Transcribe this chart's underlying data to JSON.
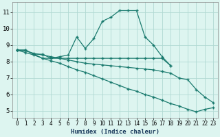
{
  "xlabel": "Humidex (Indice chaleur)",
  "line_color": "#1a7a6e",
  "bg_color": "#ddf5f0",
  "grid_color": "#b0d9d3",
  "xlim": [
    -0.5,
    23.5
  ],
  "ylim": [
    4.6,
    11.6
  ],
  "xticks": [
    0,
    1,
    2,
    3,
    4,
    5,
    6,
    7,
    8,
    9,
    10,
    11,
    12,
    13,
    14,
    15,
    16,
    17,
    18,
    19,
    20,
    21,
    22,
    23
  ],
  "yticks": [
    5,
    6,
    7,
    8,
    9,
    10,
    11
  ],
  "line1_x": [
    0,
    1,
    2,
    3,
    4,
    5,
    6,
    7,
    8,
    9,
    10,
    11,
    12,
    13,
    14,
    15,
    16,
    17,
    18
  ],
  "line1_y": [
    8.7,
    8.7,
    8.45,
    8.45,
    8.2,
    8.3,
    8.4,
    9.5,
    8.8,
    9.4,
    10.45,
    10.7,
    11.1,
    11.1,
    11.1,
    9.5,
    9.0,
    8.3,
    7.75
  ],
  "line2_x": [
    0,
    1,
    2,
    3,
    4,
    5,
    6,
    7,
    8,
    9,
    10,
    11,
    12,
    13,
    14,
    15,
    16,
    17,
    18
  ],
  "line2_y": [
    8.7,
    8.7,
    8.45,
    8.2,
    8.2,
    8.2,
    8.2,
    8.2,
    8.2,
    8.2,
    8.2,
    8.2,
    8.2,
    8.2,
    8.2,
    8.2,
    8.2,
    8.2,
    7.75
  ],
  "line3_x": [
    0,
    1,
    2,
    3,
    4,
    5,
    6,
    7,
    8,
    9,
    10,
    11,
    12,
    13,
    14,
    15,
    16,
    17,
    18,
    19,
    20,
    21,
    22,
    23
  ],
  "line3_y": [
    8.7,
    8.65,
    8.5,
    8.4,
    8.3,
    8.2,
    8.1,
    8.0,
    7.9,
    7.85,
    7.8,
    7.75,
    7.7,
    7.65,
    7.6,
    7.55,
    7.5,
    7.4,
    7.3,
    7.0,
    6.9,
    6.3,
    5.85,
    5.5
  ],
  "line4_x": [
    0,
    1,
    2,
    3,
    4,
    5,
    6,
    7,
    8,
    9,
    10,
    11,
    12,
    13,
    14,
    15,
    16,
    17,
    18,
    19,
    20,
    21,
    22,
    23
  ],
  "line4_y": [
    8.7,
    8.55,
    8.4,
    8.2,
    8.05,
    7.9,
    7.7,
    7.5,
    7.35,
    7.15,
    6.95,
    6.75,
    6.55,
    6.35,
    6.2,
    6.0,
    5.85,
    5.65,
    5.45,
    5.3,
    5.1,
    4.95,
    5.1,
    5.2
  ]
}
